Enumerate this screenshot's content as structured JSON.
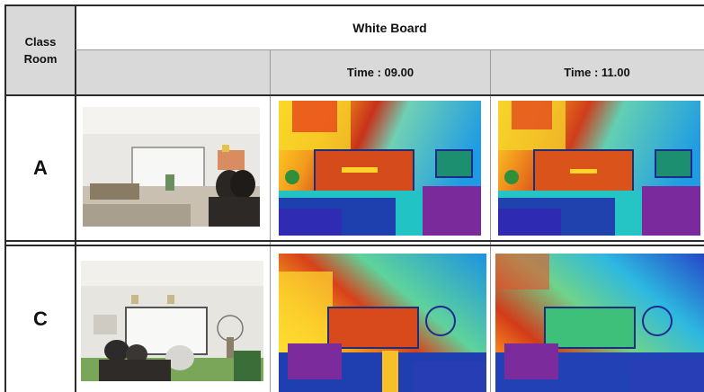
{
  "table": {
    "corner_header": "Class\nRoom",
    "group_header": "White Board",
    "subheaders": [
      "",
      "Time : 09.00",
      "Time : 11.00"
    ],
    "rows": [
      {
        "label": "A"
      },
      {
        "label": "C"
      }
    ]
  },
  "images": {
    "row_a": [
      "classroom-a-photo",
      "classroom-a-heatmap-0900",
      "classroom-a-heatmap-1100"
    ],
    "row_c": [
      "classroom-c-photo",
      "classroom-c-heatmap-0900",
      "classroom-c-heatmap-1100"
    ]
  },
  "colors": {
    "header_grey": "#d9d9d9",
    "border": "#2b2b2b"
  }
}
